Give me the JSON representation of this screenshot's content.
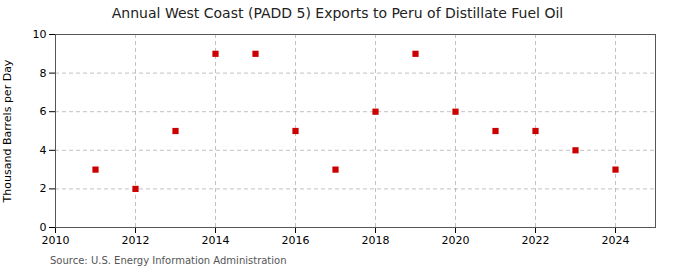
{
  "chart_data": {
    "type": "scatter",
    "title": "Annual West Coast (PADD 5) Exports to Peru of Distillate Fuel Oil",
    "ylabel": "Thousand Barrels per Day",
    "source": "Source: U.S. Energy Information Administration",
    "x": [
      2011,
      2012,
      2013,
      2014,
      2015,
      2016,
      2017,
      2018,
      2019,
      2020,
      2021,
      2022,
      2023,
      2024
    ],
    "values": [
      3,
      2,
      5,
      9,
      9,
      5,
      3,
      6,
      9,
      6,
      5,
      5,
      4,
      3
    ],
    "color": "#cc0000",
    "marker": "square",
    "xlim": [
      2010,
      2025
    ],
    "ylim": [
      0,
      10
    ],
    "xticks": [
      2010,
      2012,
      2014,
      2016,
      2018,
      2020,
      2022,
      2024
    ],
    "yticks": [
      0,
      2,
      4,
      6,
      8,
      10
    ],
    "grid": true
  }
}
